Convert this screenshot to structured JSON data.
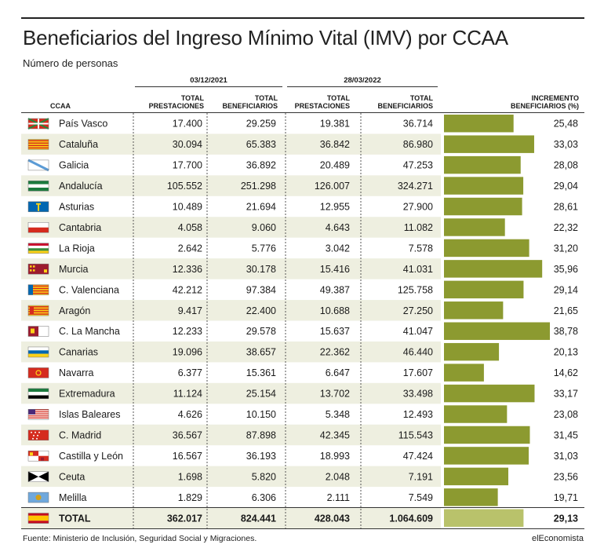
{
  "title": "Beneficiarios del Ingreso Mínimo Vital (IMV) por CCAA",
  "subtitle": "Número de personas",
  "date1": "03/12/2021",
  "date2": "28/03/2022",
  "headers": {
    "ccaa": "CCAA",
    "prest1": [
      "TOTAL",
      "PRESTACIONES"
    ],
    "benef1": [
      "TOTAL",
      "BENEFICIARIOS"
    ],
    "prest2": [
      "TOTAL",
      "PRESTACIONES"
    ],
    "benef2": [
      "TOTAL",
      "BENEFICIARIOS"
    ],
    "incr": [
      "INCREMENTO",
      "BENEFICIARIOS (%)"
    ]
  },
  "source": "Fuente: Ministerio de Inclusión, Seguridad Social y Migraciones.",
  "brand": "elEconomista",
  "colors": {
    "bar": "#8c9a30",
    "stripe": "#eeefe0",
    "total_bar": "#b9c26b"
  },
  "chart_data": {
    "type": "table",
    "columns": [
      "CCAA",
      "03/12/2021 Total prestaciones",
      "03/12/2021 Total beneficiarios",
      "28/03/2022 Total prestaciones",
      "28/03/2022 Total beneficiarios",
      "Incremento beneficiarios (%)"
    ],
    "xlim": [
      0,
      40
    ],
    "rows": [
      {
        "ccaa": "País Vasco",
        "prest1": "17.400",
        "benef1": "29.259",
        "prest2": "19.381",
        "benef2": "36.714",
        "pct_label": "25,48",
        "pct": 25.48
      },
      {
        "ccaa": "Cataluña",
        "prest1": "30.094",
        "benef1": "65.383",
        "prest2": "36.842",
        "benef2": "86.980",
        "pct_label": "33,03",
        "pct": 33.03
      },
      {
        "ccaa": "Galicia",
        "prest1": "17.700",
        "benef1": "36.892",
        "prest2": "20.489",
        "benef2": "47.253",
        "pct_label": "28,08",
        "pct": 28.08
      },
      {
        "ccaa": "Andalucía",
        "prest1": "105.552",
        "benef1": "251.298",
        "prest2": "126.007",
        "benef2": "324.271",
        "pct_label": "29,04",
        "pct": 29.04
      },
      {
        "ccaa": "Asturias",
        "prest1": "10.489",
        "benef1": "21.694",
        "prest2": "12.955",
        "benef2": "27.900",
        "pct_label": "28,61",
        "pct": 28.61
      },
      {
        "ccaa": "Cantabria",
        "prest1": "4.058",
        "benef1": "9.060",
        "prest2": "4.643",
        "benef2": "11.082",
        "pct_label": "22,32",
        "pct": 22.32
      },
      {
        "ccaa": "La Rioja",
        "prest1": "2.642",
        "benef1": "5.776",
        "prest2": "3.042",
        "benef2": "7.578",
        "pct_label": "31,20",
        "pct": 31.2
      },
      {
        "ccaa": "Murcia",
        "prest1": "12.336",
        "benef1": "30.178",
        "prest2": "15.416",
        "benef2": "41.031",
        "pct_label": "35,96",
        "pct": 35.96
      },
      {
        "ccaa": "C. Valenciana",
        "prest1": "42.212",
        "benef1": "97.384",
        "prest2": "49.387",
        "benef2": "125.758",
        "pct_label": "29,14",
        "pct": 29.14
      },
      {
        "ccaa": "Aragón",
        "prest1": "9.417",
        "benef1": "22.400",
        "prest2": "10.688",
        "benef2": "27.250",
        "pct_label": "21,65",
        "pct": 21.65
      },
      {
        "ccaa": "C. La Mancha",
        "prest1": "12.233",
        "benef1": "29.578",
        "prest2": "15.637",
        "benef2": "41.047",
        "pct_label": "38,78",
        "pct": 38.78
      },
      {
        "ccaa": "Canarias",
        "prest1": "19.096",
        "benef1": "38.657",
        "prest2": "22.362",
        "benef2": "46.440",
        "pct_label": "20,13",
        "pct": 20.13
      },
      {
        "ccaa": "Navarra",
        "prest1": "6.377",
        "benef1": "15.361",
        "prest2": "6.647",
        "benef2": "17.607",
        "pct_label": "14,62",
        "pct": 14.62
      },
      {
        "ccaa": "Extremadura",
        "prest1": "11.124",
        "benef1": "25.154",
        "prest2": "13.702",
        "benef2": "33.498",
        "pct_label": "33,17",
        "pct": 33.17
      },
      {
        "ccaa": "Islas Baleares",
        "prest1": "4.626",
        "benef1": "10.150",
        "prest2": "5.348",
        "benef2": "12.493",
        "pct_label": "23,08",
        "pct": 23.08
      },
      {
        "ccaa": "C. Madrid",
        "prest1": "36.567",
        "benef1": "87.898",
        "prest2": "42.345",
        "benef2": "115.543",
        "pct_label": "31,45",
        "pct": 31.45
      },
      {
        "ccaa": "Castilla y León",
        "prest1": "16.567",
        "benef1": "36.193",
        "prest2": "18.993",
        "benef2": "47.424",
        "pct_label": "31,03",
        "pct": 31.03
      },
      {
        "ccaa": "Ceuta",
        "prest1": "1.698",
        "benef1": "5.820",
        "prest2": "2.048",
        "benef2": "7.191",
        "pct_label": "23,56",
        "pct": 23.56
      },
      {
        "ccaa": "Melilla",
        "prest1": "1.829",
        "benef1": "6.306",
        "prest2": "2.111",
        "benef2": "7.549",
        "pct_label": "19,71",
        "pct": 19.71
      },
      {
        "ccaa": "TOTAL",
        "prest1": "362.017",
        "benef1": "824.441",
        "prest2": "428.043",
        "benef2": "1.064.609",
        "pct_label": "29,13",
        "pct": 29.13,
        "total": true
      }
    ]
  }
}
